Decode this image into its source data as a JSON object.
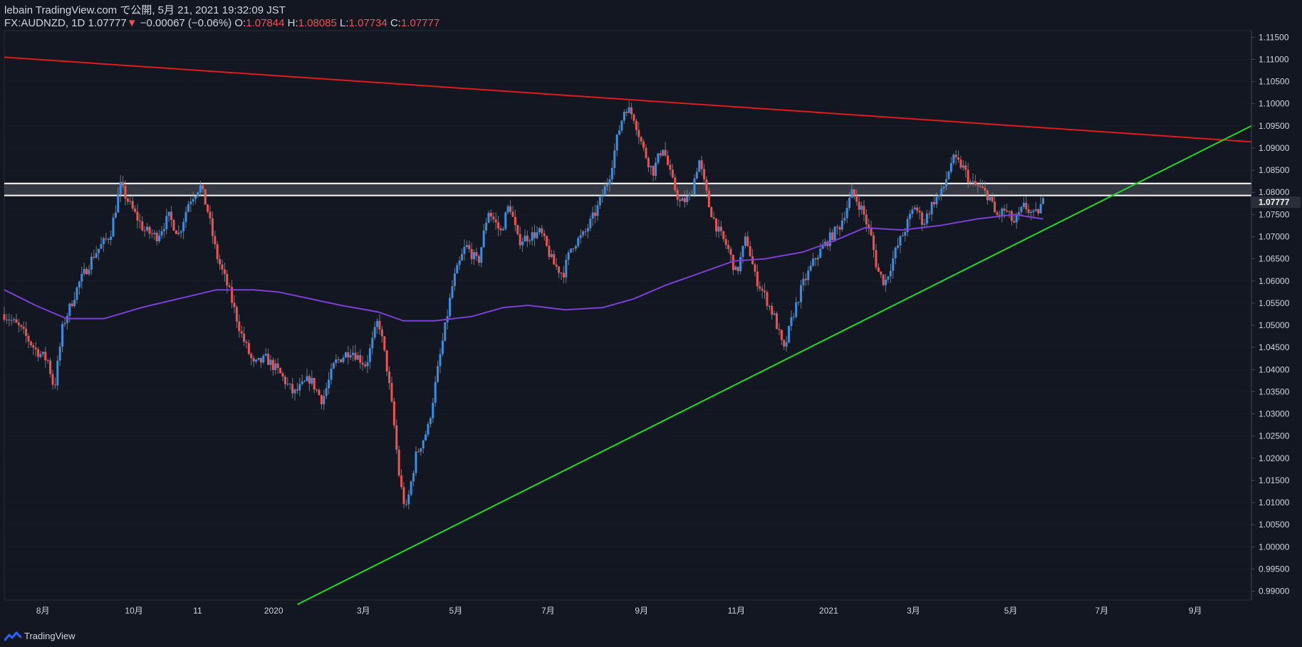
{
  "header": {
    "line1": "lebain TradingView.com で公開, 5月 21, 2021 19:32:09 JST",
    "symbol": "FX:AUDNZD, 1D",
    "last": "1.07777",
    "arrow": "▼",
    "change": "−0.00067 (−0.06%)",
    "o_label": "O:",
    "o": "1.07844",
    "h_label": "H:",
    "h": "1.08085",
    "l_label": "L:",
    "l": "1.07734",
    "c_label": "C:",
    "c": "1.07777"
  },
  "footer": {
    "brand": "TradingView"
  },
  "colors": {
    "bg": "#131722",
    "up": "#2962ff",
    "up2": "#3a8ee6",
    "down": "#ef5350",
    "ma": "#7e3fd6",
    "resistance": "#e01b1b",
    "support": "#21d921",
    "zone": "#ffffff",
    "grid": "#2a2e39",
    "axis_text": "#d1d4dc"
  },
  "chart_data": {
    "type": "candlestick",
    "symbol": "FX:AUDNZD",
    "interval": "1D",
    "ylim": [
      0.988,
      1.1165
    ],
    "y_ticks": [
      "1.11500",
      "1.11000",
      "1.10500",
      "1.10000",
      "1.09500",
      "1.09000",
      "1.08500",
      "1.08000",
      "1.07500",
      "1.07000",
      "1.06500",
      "1.06000",
      "1.05500",
      "1.05000",
      "1.04500",
      "1.04000",
      "1.03500",
      "1.03000",
      "1.02500",
      "1.02000",
      "1.01500",
      "1.01000",
      "1.00500",
      "1.00000",
      "0.99500",
      "0.99000"
    ],
    "x_ticks": [
      "8月",
      "10月",
      "11",
      "2020",
      "3月",
      "5月",
      "7月",
      "9月",
      "11月",
      "2021",
      "3月",
      "5月",
      "7月",
      "9月"
    ],
    "last_price_label": "1.07777",
    "close_series": [
      [
        0.0,
        1.0525
      ],
      [
        0.012,
        1.0495
      ],
      [
        0.025,
        1.0445
      ],
      [
        0.035,
        1.042
      ],
      [
        0.04,
        1.0355
      ],
      [
        0.047,
        1.05
      ],
      [
        0.06,
        1.0595
      ],
      [
        0.072,
        1.066
      ],
      [
        0.085,
        1.0705
      ],
      [
        0.093,
        1.0815
      ],
      [
        0.102,
        1.0765
      ],
      [
        0.112,
        1.0715
      ],
      [
        0.122,
        1.07
      ],
      [
        0.132,
        1.0745
      ],
      [
        0.14,
        1.0705
      ],
      [
        0.148,
        1.078
      ],
      [
        0.157,
        1.0815
      ],
      [
        0.163,
        1.076
      ],
      [
        0.17,
        1.066
      ],
      [
        0.18,
        1.058
      ],
      [
        0.19,
        1.048
      ],
      [
        0.2,
        1.041
      ],
      [
        0.21,
        1.0425
      ],
      [
        0.22,
        1.0395
      ],
      [
        0.232,
        1.0345
      ],
      [
        0.245,
        1.038
      ],
      [
        0.255,
        1.033
      ],
      [
        0.265,
        1.0415
      ],
      [
        0.278,
        1.0445
      ],
      [
        0.29,
        1.041
      ],
      [
        0.3,
        1.0515
      ],
      [
        0.307,
        1.04
      ],
      [
        0.312,
        1.029
      ],
      [
        0.317,
        1.015
      ],
      [
        0.322,
        1.008
      ],
      [
        0.33,
        1.0205
      ],
      [
        0.34,
        1.027
      ],
      [
        0.35,
        1.044
      ],
      [
        0.36,
        1.06
      ],
      [
        0.37,
        1.068
      ],
      [
        0.38,
        1.064
      ],
      [
        0.388,
        1.076
      ],
      [
        0.398,
        1.071
      ],
      [
        0.405,
        1.0775
      ],
      [
        0.412,
        1.069
      ],
      [
        0.42,
        1.07
      ],
      [
        0.43,
        1.071
      ],
      [
        0.44,
        1.064
      ],
      [
        0.448,
        1.0615
      ],
      [
        0.455,
        1.068
      ],
      [
        0.465,
        1.0705
      ],
      [
        0.475,
        1.076
      ],
      [
        0.485,
        1.0835
      ],
      [
        0.492,
        1.093
      ],
      [
        0.498,
        1.0995
      ],
      [
        0.505,
        1.097
      ],
      [
        0.512,
        1.09
      ],
      [
        0.52,
        1.0845
      ],
      [
        0.528,
        1.0905
      ],
      [
        0.535,
        1.083
      ],
      [
        0.542,
        1.0775
      ],
      [
        0.55,
        1.079
      ],
      [
        0.557,
        1.0875
      ],
      [
        0.565,
        1.077
      ],
      [
        0.572,
        1.0715
      ],
      [
        0.58,
        1.0675
      ],
      [
        0.587,
        1.0615
      ],
      [
        0.595,
        1.07
      ],
      [
        0.602,
        1.061
      ],
      [
        0.61,
        1.0565
      ],
      [
        0.618,
        1.0515
      ],
      [
        0.625,
        1.044
      ],
      [
        0.632,
        1.052
      ],
      [
        0.64,
        1.059
      ],
      [
        0.65,
        1.065
      ],
      [
        0.66,
        1.069
      ],
      [
        0.67,
        1.0725
      ],
      [
        0.68,
        1.08
      ],
      [
        0.688,
        1.076
      ],
      [
        0.695,
        1.07
      ],
      [
        0.7,
        1.0625
      ],
      [
        0.706,
        1.0595
      ],
      [
        0.715,
        1.067
      ],
      [
        0.722,
        1.0715
      ],
      [
        0.73,
        1.077
      ],
      [
        0.737,
        1.073
      ],
      [
        0.745,
        1.078
      ],
      [
        0.752,
        1.08
      ],
      [
        0.76,
        1.0875
      ],
      [
        0.768,
        1.086
      ],
      [
        0.775,
        1.082
      ],
      [
        0.782,
        1.081
      ],
      [
        0.79,
        1.079
      ],
      [
        0.795,
        1.0745
      ],
      [
        0.802,
        1.076
      ],
      [
        0.81,
        1.073
      ],
      [
        0.818,
        1.077
      ],
      [
        0.826,
        1.0745
      ],
      [
        0.833,
        1.0778
      ]
    ],
    "moving_average": [
      [
        0.0,
        1.058
      ],
      [
        0.025,
        1.0545
      ],
      [
        0.05,
        1.0515
      ],
      [
        0.08,
        1.0515
      ],
      [
        0.11,
        1.054
      ],
      [
        0.14,
        1.056
      ],
      [
        0.17,
        1.058
      ],
      [
        0.2,
        1.058
      ],
      [
        0.22,
        1.0575
      ],
      [
        0.245,
        1.056
      ],
      [
        0.27,
        1.0545
      ],
      [
        0.3,
        1.053
      ],
      [
        0.32,
        1.051
      ],
      [
        0.345,
        1.051
      ],
      [
        0.375,
        1.052
      ],
      [
        0.4,
        1.054
      ],
      [
        0.42,
        1.0545
      ],
      [
        0.45,
        1.0535
      ],
      [
        0.48,
        1.054
      ],
      [
        0.505,
        1.056
      ],
      [
        0.53,
        1.059
      ],
      [
        0.56,
        1.062
      ],
      [
        0.585,
        1.0645
      ],
      [
        0.61,
        1.065
      ],
      [
        0.64,
        1.0665
      ],
      [
        0.665,
        1.069
      ],
      [
        0.69,
        1.072
      ],
      [
        0.72,
        1.0715
      ],
      [
        0.75,
        1.0725
      ],
      [
        0.78,
        1.074
      ],
      [
        0.81,
        1.075
      ],
      [
        0.833,
        1.074
      ]
    ],
    "trendlines": [
      {
        "name": "resistance",
        "x": [
          0.0,
          0.9999
        ],
        "y": [
          1.1105,
          1.0914
        ]
      },
      {
        "name": "support",
        "x": [
          0.235,
          0.9999
        ],
        "y": [
          0.987,
          1.095
        ]
      }
    ],
    "zone": {
      "y_top": 1.082,
      "y_bottom": 1.0793
    }
  }
}
